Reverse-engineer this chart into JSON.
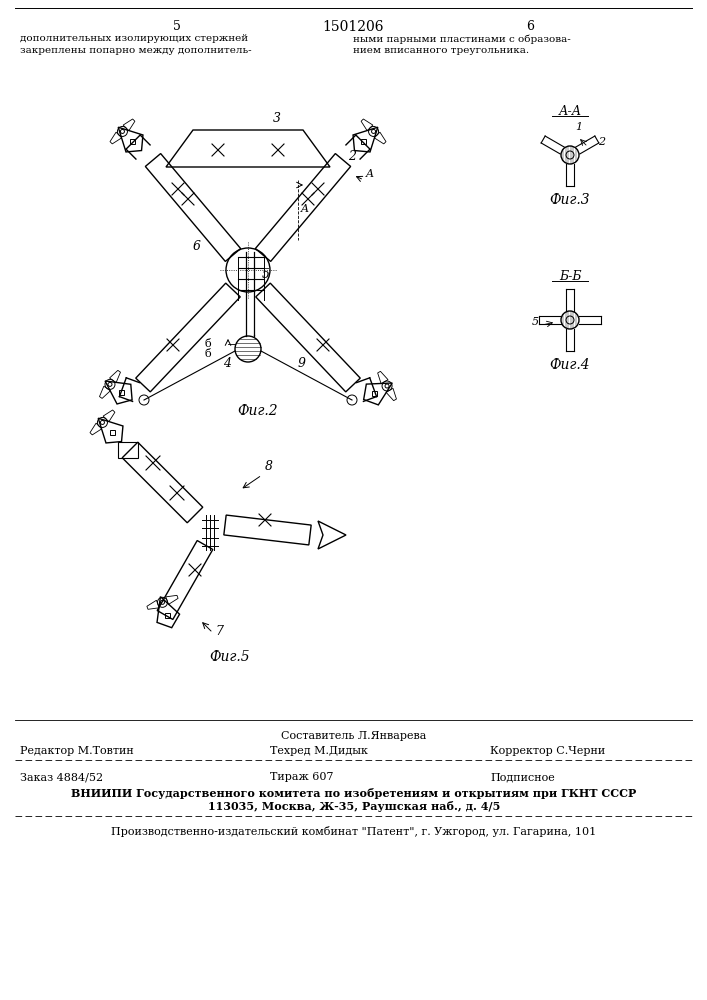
{
  "bg_color": "#ffffff",
  "page_number_left": "5",
  "page_number_center": "1501206",
  "page_number_right": "6",
  "top_text_left1": "дополнительных изолирующих стержней",
  "top_text_left2": "закреплены попарно между дополнитель-",
  "top_text_right1": "ными парными пластинами с образова-",
  "top_text_right2": "нием вписанного треугольника.",
  "fig2_label": "Фиг.2",
  "fig3_label": "Фиг.3",
  "fig4_label": "Фиг.4",
  "fig5_label": "Фиг.5",
  "section_aa": "А-А",
  "section_bb": "Б-Б",
  "footer_sestavitel": "Составитель Л.Январева",
  "footer_redaktor": "Редактор М.Товтин",
  "footer_tekhred": "Техред М.Дидык",
  "footer_korrektor": "Корректор С.Черни",
  "footer_zakaz": "Заказ 4884/52",
  "footer_tirazh": "Тираж 607",
  "footer_podpisnoe": "Подписное",
  "footer_vniipи": "ВНИИПИ Государственного комитета по изобретениям и открытиям при ГКНТ СССР",
  "footer_address": "113035, Москва, Ж-35, Раушская наб., д. 4/5",
  "footer_patent": "Производственно-издательский комбинат \"Патент\", г. Ужгород, ул. Гагарина, 101"
}
